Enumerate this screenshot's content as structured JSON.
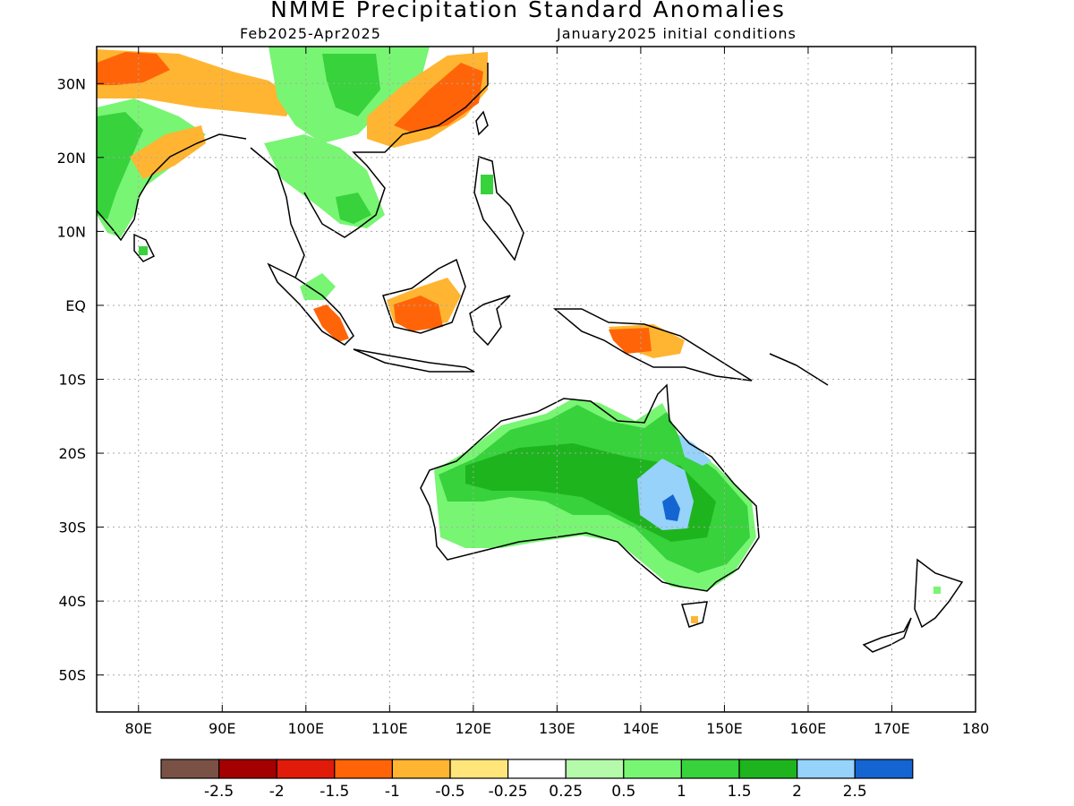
{
  "header": {
    "title": "NMME Precipitation Standard Anomalies",
    "period": "Feb2025-Apr2025",
    "initial_conditions": "January2025 initial conditions"
  },
  "map": {
    "lon_range": [
      75,
      180
    ],
    "lat_range": [
      -55,
      35
    ],
    "lon_ticks": [
      {
        "value": 80,
        "label": "80E"
      },
      {
        "value": 90,
        "label": "90E"
      },
      {
        "value": 100,
        "label": "100E"
      },
      {
        "value": 110,
        "label": "110E"
      },
      {
        "value": 120,
        "label": "120E"
      },
      {
        "value": 130,
        "label": "130E"
      },
      {
        "value": 140,
        "label": "140E"
      },
      {
        "value": 150,
        "label": "150E"
      },
      {
        "value": 160,
        "label": "160E"
      },
      {
        "value": 170,
        "label": "170E"
      },
      {
        "value": 180,
        "label": "180"
      }
    ],
    "lat_ticks": [
      {
        "value": 30,
        "label": "30N"
      },
      {
        "value": 20,
        "label": "20N"
      },
      {
        "value": 10,
        "label": "10N"
      },
      {
        "value": 0,
        "label": "EQ"
      },
      {
        "value": -10,
        "label": "10S"
      },
      {
        "value": -20,
        "label": "20S"
      },
      {
        "value": -30,
        "label": "30S"
      },
      {
        "value": -40,
        "label": "40S"
      },
      {
        "value": -50,
        "label": "50S"
      }
    ],
    "grid": true
  },
  "legend": {
    "colors": [
      "#7a5245",
      "#a50000",
      "#e01b0a",
      "#ff6508",
      "#ffb531",
      "#ffe57a",
      "#ffffff",
      "#b4faaa",
      "#78f573",
      "#37d23c",
      "#1eb41e",
      "#96d2fa",
      "#1464d2"
    ],
    "labels": [
      "-2.5",
      "-2",
      "-1.5",
      "-1",
      "-0.5",
      "-0.25",
      "0.25",
      "0.5",
      "1",
      "1.5",
      "2",
      "2.5"
    ]
  }
}
